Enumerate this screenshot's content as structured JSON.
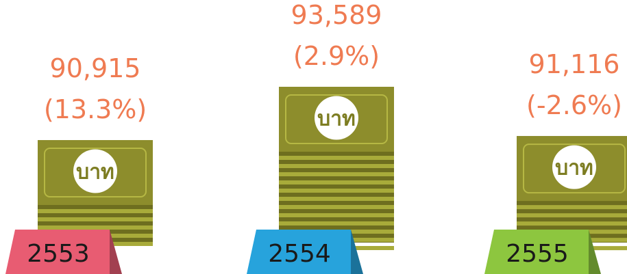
{
  "chart_data": {
    "type": "bar",
    "categories": [
      "2553",
      "2554",
      "2555"
    ],
    "values": [
      90915,
      93589,
      91116
    ],
    "value_labels": [
      "90,915",
      "93,589",
      "91,116"
    ],
    "changes": [
      13.3,
      2.9,
      -2.6
    ],
    "change_labels": [
      "(13.3%)",
      "(2.9%)",
      "(-2.6%)"
    ],
    "currency_label": "บาท",
    "tag_colors": [
      "#e85c72",
      "#27a3dc",
      "#8dc63f"
    ]
  }
}
